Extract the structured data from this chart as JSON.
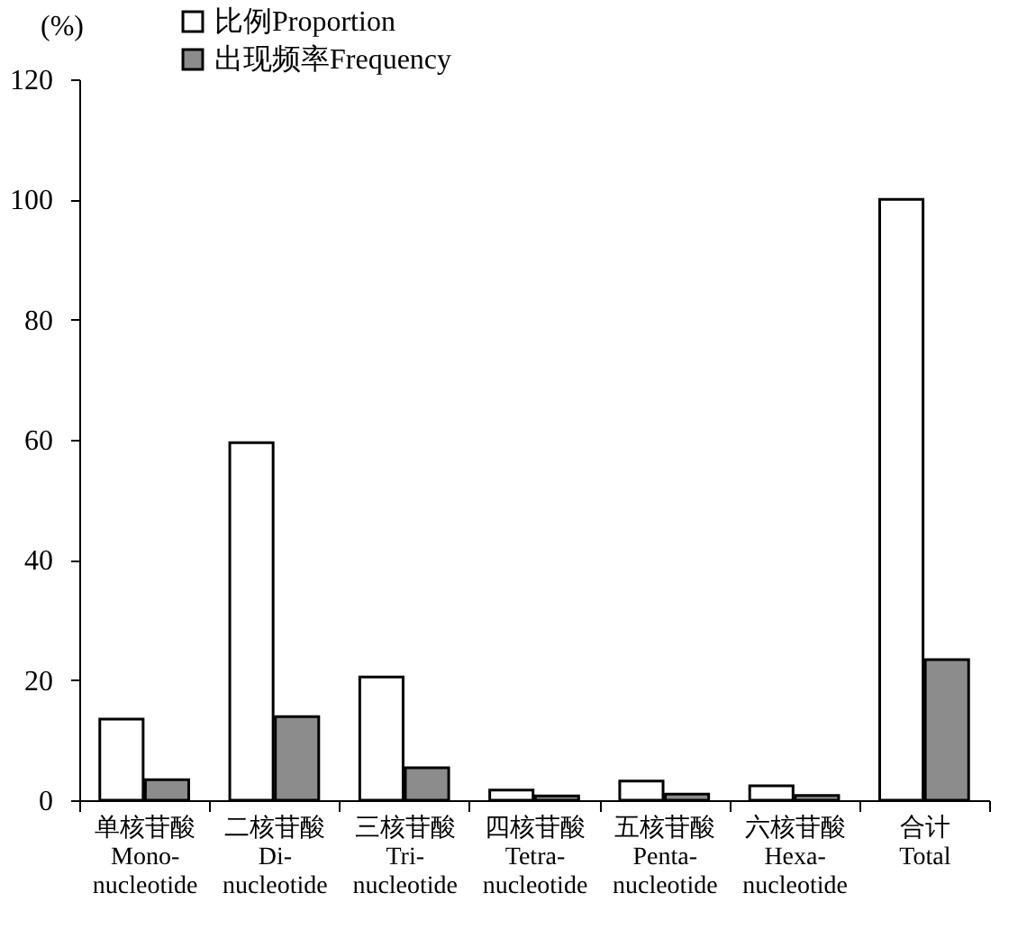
{
  "chart_data": {
    "type": "bar",
    "ylabel": "(%)",
    "categories": [
      "单核苷酸\nMono-\nnucleotide",
      "二核苷酸\nDi-\nnucleotide",
      "三核苷酸\nTri-\nnucleotide",
      "四核苷酸\nTetra-\nnucleotide",
      "五核苷酸\nPenta-\nnucleotide",
      "六核苷酸\nHexa-\nnucleotide",
      "合计\nTotal"
    ],
    "series": [
      {
        "name": "比例Proportion",
        "color": "#ffffff",
        "values": [
          13.5,
          59.5,
          20.5,
          1.7,
          3.2,
          2.4,
          100
        ]
      },
      {
        "name": "出现频率Frequency",
        "color": "#8c8c8c",
        "values": [
          3.4,
          13.9,
          5.4,
          0.7,
          1.0,
          0.8,
          23.4
        ]
      }
    ],
    "ylim": [
      0,
      120
    ],
    "yticks": [
      0,
      20,
      40,
      60,
      80,
      100,
      120
    ],
    "grid": false,
    "legend": "top left"
  }
}
